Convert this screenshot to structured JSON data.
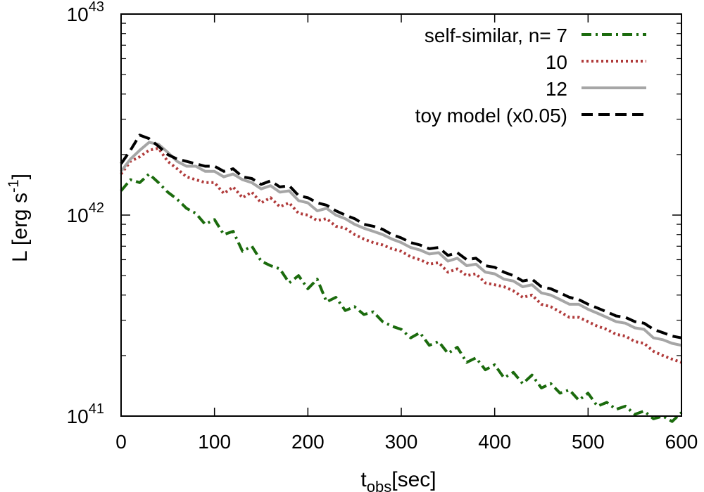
{
  "chart_data": {
    "type": "line",
    "title": "",
    "xlabel": "t",
    "xlabel_sub": "obs",
    "xlabel_suffix": "[sec]",
    "ylabel": "L [erg s",
    "ylabel_sup": "-1",
    "ylabel_suffix": "]",
    "xlim": [
      0,
      600
    ],
    "ylim": [
      1e+41,
      1e+43
    ],
    "yscale": "log",
    "grid": false,
    "legend_position": "top-right",
    "x_ticks": [
      {
        "value": 0,
        "label": "0"
      },
      {
        "value": 100,
        "label": "100"
      },
      {
        "value": 200,
        "label": "200"
      },
      {
        "value": 300,
        "label": "300"
      },
      {
        "value": 400,
        "label": "400"
      },
      {
        "value": 500,
        "label": "500"
      },
      {
        "value": 600,
        "label": "600"
      }
    ],
    "y_ticks": [
      {
        "value": 1e+41,
        "base": "10",
        "exp": "41"
      },
      {
        "value": 1e+42,
        "base": "10",
        "exp": "42"
      },
      {
        "value": 1e+43,
        "base": "10",
        "exp": "43"
      }
    ],
    "series": [
      {
        "name": "self-similar, n= 7",
        "color": "#1b6b0d",
        "dash": "dashdot",
        "x": [
          0,
          10,
          20,
          30,
          40,
          50,
          60,
          70,
          80,
          90,
          100,
          110,
          120,
          130,
          140,
          150,
          160,
          170,
          180,
          190,
          200,
          210,
          220,
          230,
          240,
          250,
          260,
          270,
          280,
          290,
          300,
          310,
          320,
          330,
          340,
          350,
          360,
          370,
          380,
          390,
          400,
          410,
          420,
          430,
          440,
          450,
          460,
          470,
          480,
          490,
          500,
          510,
          520,
          530,
          540,
          550,
          560,
          570,
          580,
          590,
          600
        ],
        "y": [
          1.32e+42,
          1.5e+42,
          1.45e+42,
          1.6e+42,
          1.45e+42,
          1.3e+42,
          1.2e+42,
          1.08e+42,
          1.02e+42,
          9e+41,
          9.5e+41,
          8e+41,
          8.3e+41,
          6.6e+41,
          7e+41,
          5.9e+41,
          5.6e+41,
          5.4e+41,
          4.6e+41,
          5e+41,
          4.3e+41,
          4.8e+41,
          3.7e+41,
          3.9e+41,
          3.35e+41,
          3.5e+41,
          3.2e+41,
          3.3e+41,
          2.95e+41,
          2.8e+41,
          2.7e+41,
          2.45e+41,
          2.6e+41,
          2.25e+41,
          2.35e+41,
          2.05e+41,
          2.2e+41,
          1.85e+41,
          1.95e+41,
          1.7e+41,
          1.8e+41,
          1.55e+41,
          1.65e+41,
          1.45e+41,
          1.6e+41,
          1.38e+41,
          1.45e+41,
          1.3e+41,
          1.35e+41,
          1.2e+41,
          1.3e+41,
          1.12e+41,
          1.17e+41,
          1.08e+41,
          1.12e+41,
          1.02e+41,
          1.06e+41,
          9.7e+40,
          1e+41,
          9.4e+40,
          1.04e+41
        ]
      },
      {
        "name": "10",
        "color": "#b03a3a",
        "dash": "dotted",
        "x": [
          0,
          10,
          20,
          30,
          40,
          50,
          60,
          70,
          80,
          90,
          100,
          110,
          120,
          130,
          140,
          150,
          160,
          170,
          180,
          190,
          200,
          210,
          220,
          230,
          240,
          250,
          260,
          270,
          280,
          290,
          300,
          310,
          320,
          330,
          340,
          350,
          360,
          370,
          380,
          390,
          400,
          410,
          420,
          430,
          440,
          450,
          460,
          470,
          480,
          490,
          500,
          510,
          520,
          530,
          540,
          550,
          560,
          570,
          580,
          590,
          600
        ],
        "y": [
          1.6e+42,
          1.85e+42,
          1.95e+42,
          2.1e+42,
          2.15e+42,
          1.85e+42,
          1.7e+42,
          1.55e+42,
          1.5e+42,
          1.45e+42,
          1.45e+42,
          1.28e+42,
          1.38e+42,
          1.22e+42,
          1.3e+42,
          1.15e+42,
          1.22e+42,
          1.1e+42,
          1.15e+42,
          1.02e+42,
          1e+42,
          9.4e+41,
          9.6e+41,
          8.8e+41,
          8.6e+41,
          8e+41,
          7.6e+41,
          7.3e+41,
          7.1e+41,
          6.8e+41,
          6.6e+41,
          6.2e+41,
          6e+41,
          5.7e+41,
          5.8e+41,
          5.2e+41,
          5.4e+41,
          5e+41,
          5.1e+41,
          4.6e+41,
          4.5e+41,
          4.4e+41,
          4.2e+41,
          3.9e+41,
          4e+41,
          3.6e+41,
          3.5e+41,
          3.3e+41,
          3.1e+41,
          3.1e+41,
          2.95e+41,
          2.8e+41,
          2.7e+41,
          2.55e+41,
          2.5e+41,
          2.35e+41,
          2.3e+41,
          2.1e+41,
          2e+41,
          1.92e+41,
          1.85e+41
        ]
      },
      {
        "name": "12",
        "color": "#a6a6a6",
        "dash": "solid",
        "x": [
          0,
          10,
          20,
          30,
          40,
          50,
          60,
          70,
          80,
          90,
          100,
          110,
          120,
          130,
          140,
          150,
          160,
          170,
          180,
          190,
          200,
          210,
          220,
          230,
          240,
          250,
          260,
          270,
          280,
          290,
          300,
          310,
          320,
          330,
          340,
          350,
          360,
          370,
          380,
          390,
          400,
          410,
          420,
          430,
          440,
          450,
          460,
          470,
          480,
          490,
          500,
          510,
          520,
          530,
          540,
          550,
          560,
          570,
          580,
          590,
          600
        ],
        "y": [
          1.65e+42,
          1.9e+42,
          2.1e+42,
          2.3e+42,
          2.25e+42,
          2.05e+42,
          1.85e+42,
          1.75e+42,
          1.75e+42,
          1.65e+42,
          1.65e+42,
          1.55e+42,
          1.6e+42,
          1.5e+42,
          1.45e+42,
          1.35e+42,
          1.4e+42,
          1.3e+42,
          1.32e+42,
          1.18e+42,
          1.15e+42,
          1.05e+42,
          1.08e+42,
          1e+42,
          9.6e+41,
          9e+41,
          8.6e+41,
          8.3e+41,
          8e+41,
          7.6e+41,
          7.3e+41,
          6.9e+41,
          6.7e+41,
          6.4e+41,
          6.5e+41,
          5.9e+41,
          6.1e+41,
          5.6e+41,
          5.7e+41,
          5.2e+41,
          5.1e+41,
          4.8e+41,
          4.7e+41,
          4.4e+41,
          4.5e+41,
          4.1e+41,
          4e+41,
          3.8e+41,
          3.6e+41,
          3.6e+41,
          3.4e+41,
          3.25e+41,
          3.1e+41,
          2.95e+41,
          2.9e+41,
          2.75e+41,
          2.7e+41,
          2.45e+41,
          2.4e+41,
          2.3e+41,
          2.25e+41
        ]
      },
      {
        "name": "toy model (x0.05)",
        "color": "#000000",
        "dash": "dashed",
        "x": [
          0,
          10,
          20,
          30,
          40,
          50,
          60,
          70,
          80,
          90,
          100,
          110,
          120,
          130,
          140,
          150,
          160,
          170,
          180,
          190,
          200,
          210,
          220,
          230,
          240,
          250,
          260,
          270,
          280,
          290,
          300,
          310,
          320,
          330,
          340,
          350,
          360,
          370,
          380,
          390,
          400,
          410,
          420,
          430,
          440,
          450,
          460,
          470,
          480,
          490,
          500,
          510,
          520,
          530,
          540,
          550,
          560,
          570,
          580,
          590,
          600
        ],
        "y": [
          1.8e+42,
          2.1e+42,
          2.5e+42,
          2.4e+42,
          2.2e+42,
          2e+42,
          1.9e+42,
          1.85e+42,
          1.8e+42,
          1.75e+42,
          1.75e+42,
          1.65e+42,
          1.7e+42,
          1.55e+42,
          1.52e+42,
          1.42e+42,
          1.48e+42,
          1.38e+42,
          1.4e+42,
          1.25e+42,
          1.22e+42,
          1.15e+42,
          1.12e+42,
          1.05e+42,
          1e+42,
          9.6e+41,
          9e+41,
          8.8e+41,
          8.5e+41,
          8e+41,
          7.7e+41,
          7.3e+41,
          7.1e+41,
          6.8e+41,
          6.9e+41,
          6.3e+41,
          6.5e+41,
          6e+41,
          6.1e+41,
          5.6e+41,
          5.5e+41,
          5.2e+41,
          5e+41,
          4.7e+41,
          4.8e+41,
          4.4e+41,
          4.3e+41,
          4.1e+41,
          3.9e+41,
          3.8e+41,
          3.6e+41,
          3.45e+41,
          3.3e+41,
          3.15e+41,
          3.1e+41,
          2.95e+41,
          2.9e+41,
          2.7e+41,
          2.6e+41,
          2.5e+41,
          2.45e+41
        ]
      }
    ]
  }
}
